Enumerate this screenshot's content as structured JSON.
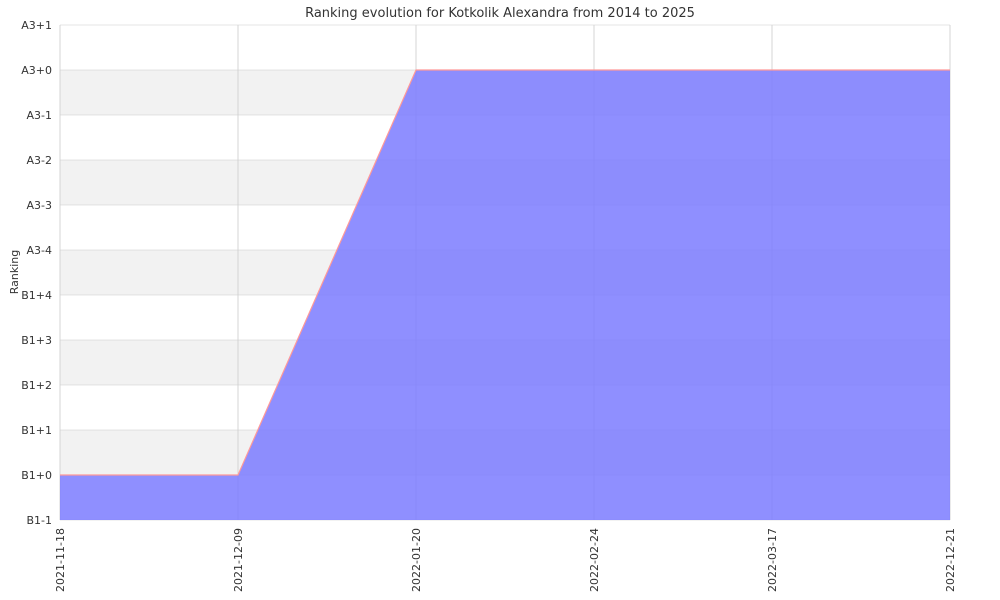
{
  "chart_data": {
    "type": "area",
    "title": "Ranking evolution for Kotkolik Alexandra from 2014 to 2025",
    "xlabel": "",
    "ylabel": "Ranking",
    "y_categories": [
      "B1-1",
      "B1+0",
      "B1+1",
      "B1+2",
      "B1+3",
      "B1+4",
      "A3-4",
      "A3-3",
      "A3-2",
      "A3-1",
      "A3+0",
      "A3+1"
    ],
    "x_ticks": [
      "2021-11-18",
      "2021-12-09",
      "2022-01-20",
      "2022-02-24",
      "2022-03-17",
      "2022-12-21"
    ],
    "series": [
      {
        "x": [
          "2021-11-18",
          "2021-12-09",
          "2022-01-20",
          "2022-02-24",
          "2022-03-17",
          "2022-12-21"
        ],
        "values": [
          "B1+0",
          "B1+0",
          "A3+0",
          "A3+0",
          "A3+0",
          "A3+0"
        ]
      }
    ],
    "grid": true,
    "colors": {
      "fill": "#7b7bff",
      "line": "#ff9999",
      "band": "#f2f2f2",
      "grid": "#cccccc"
    }
  }
}
